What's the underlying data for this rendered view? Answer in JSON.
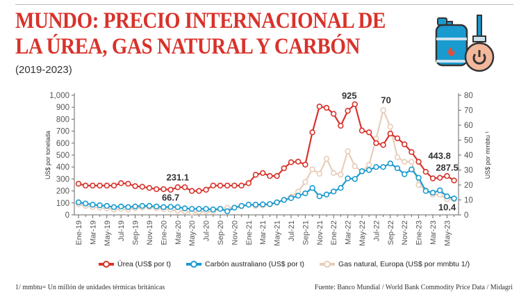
{
  "header": {
    "title_line1": "MUNDO: PRECIO INTERNACIONAL DE",
    "title_line2": "LA ÚREA, GAS NATURAL Y CARBÓN",
    "subtitle": "(2019-2023)",
    "icon": "gas-cylinder-icon"
  },
  "colors": {
    "urea": "#d8322b",
    "carbon": "#1a9bd0",
    "gas": "#e7cdb8",
    "title": "#d8322b"
  },
  "chart_data": {
    "type": "line",
    "categories": [
      "Ene-19",
      "Feb-19",
      "Mar-19",
      "Abr-19",
      "May-19",
      "Jun-19",
      "Jul-19",
      "Ago-19",
      "Sep-19",
      "Oct-19",
      "Nov-19",
      "Dic-19",
      "Ene-20",
      "Feb-20",
      "Mar-20",
      "Abr-20",
      "May-20",
      "Jun-20",
      "Jul-20",
      "Ago-20",
      "Sep-20",
      "Oct-20",
      "Nov-20",
      "Dic-20",
      "Ene-21",
      "Feb-21",
      "Mar-21",
      "Abr-21",
      "May-21",
      "Jun-21",
      "Jul-21",
      "Ago-21",
      "Sep-21",
      "Oct-21",
      "Nov-21",
      "Dic-21",
      "Ene-22",
      "Feb-22",
      "Mar-22",
      "Abr-22",
      "May-22",
      "Jun-22",
      "Jul-22",
      "Ago-22",
      "Sep-22",
      "Oct-22",
      "Nov-22",
      "Dic-22",
      "Ene-23",
      "Feb-23",
      "Mar-23",
      "Abr-23",
      "May-23",
      "Jun-23"
    ],
    "tick_labels": [
      "Ene-19",
      "Mar-19",
      "May-19",
      "Jul-19",
      "Sep-19",
      "Nov-19",
      "Ene-20",
      "Mar-20",
      "May-20",
      "Jul-20",
      "Sep-20",
      "Nov-20",
      "Ene-21",
      "Mar-21",
      "May-21",
      "Jul-21",
      "Sep-21",
      "Nov-21",
      "Ene-22",
      "Mar-22",
      "May-22",
      "Jul-22",
      "Sep-22",
      "Nov-22",
      "Ene-23",
      "Mar-23",
      "May-23"
    ],
    "series": [
      {
        "name": "Úrea (US$ por t)",
        "axis": "left",
        "color": "#d8322b",
        "values": [
          260,
          245,
          245,
          245,
          245,
          245,
          265,
          260,
          240,
          235,
          225,
          215,
          215,
          210,
          231.1,
          231,
          200,
          200,
          210,
          245,
          245,
          245,
          245,
          245,
          265,
          335,
          350,
          325,
          325,
          390,
          440,
          445,
          420,
          690,
          906,
          895,
          845,
          745,
          870,
          925,
          705,
          690,
          600,
          585,
          680,
          640,
          590,
          525,
          443.8,
          360,
          305,
          310,
          325,
          287.5
        ]
      },
      {
        "name": "Carbón australiano (US$ por t)",
        "axis": "left",
        "color": "#1a9bd0",
        "values": [
          105,
          95,
          85,
          80,
          75,
          65,
          70,
          65,
          70,
          75,
          75,
          70,
          65,
          66.7,
          65,
          55,
          50,
          50,
          50,
          45,
          50,
          30,
          60,
          75,
          85,
          85,
          88,
          90,
          105,
          125,
          140,
          160,
          180,
          225,
          155,
          170,
          195,
          225,
          305,
          300,
          365,
          375,
          400,
          400,
          430,
          390,
          340,
          380,
          310,
          200,
          185,
          205,
          155,
          137
        ]
      },
      {
        "name": "Gas natural, Europa (US$ por mmbtu 1/)",
        "axis": "right",
        "color": "#e7cdb8",
        "values": [
          7.2,
          6,
          5.2,
          4.8,
          4.4,
          3.6,
          4,
          3.6,
          4.4,
          4.8,
          5.2,
          4.4,
          4,
          3.6,
          2.8,
          2.4,
          1.6,
          2,
          2.4,
          2.4,
          4,
          4.8,
          4.8,
          5.6,
          6.8,
          6,
          6.3,
          7,
          8,
          10,
          12,
          15.5,
          22,
          30.5,
          27.5,
          37.5,
          28,
          27,
          42.5,
          32.5,
          29,
          33.5,
          51,
          70,
          59,
          38.5,
          35.5,
          35.5,
          20,
          16.5,
          13.5,
          13.5,
          10.5,
          10.4
        ]
      }
    ],
    "annotations": [
      {
        "text": "231.1",
        "series": 0,
        "index": 14
      },
      {
        "text": "66.7",
        "series": 1,
        "index": 13
      },
      {
        "text": "925",
        "series": 0,
        "index": 39
      },
      {
        "text": "70",
        "series": 2,
        "index": 43
      },
      {
        "text": "443.8",
        "series": 0,
        "index": 48
      },
      {
        "text": "287.5",
        "series": 0,
        "index": 53
      },
      {
        "text": "10.4",
        "series": 2,
        "index": 53
      }
    ],
    "ylabel": "US$ por tonelada",
    "ylabel_right": "US$ por mmbtu ¹",
    "ylim": [
      0,
      1000
    ],
    "ylim_right": [
      0,
      80
    ],
    "yticks": [
      "0",
      "100",
      "200",
      "300",
      "400",
      "500",
      "600",
      "700",
      "800",
      "900",
      "1,000"
    ],
    "yticks_right": [
      "0",
      "10",
      "20",
      "30",
      "40",
      "50",
      "60",
      "70",
      "80"
    ],
    "legend_position": "bottom"
  },
  "legend": [
    "Úrea (US$ por t)",
    "Carbón australiano (US$ por t)",
    "Gas natural, Europa (US$ por mmbtu 1/)"
  ],
  "footer": {
    "note": "1/ mmbtu= Un millón de unidades térmicas británicas",
    "source": "Fuente: Banco Mundial / World Bank Commodity Price Data / Midagri"
  }
}
